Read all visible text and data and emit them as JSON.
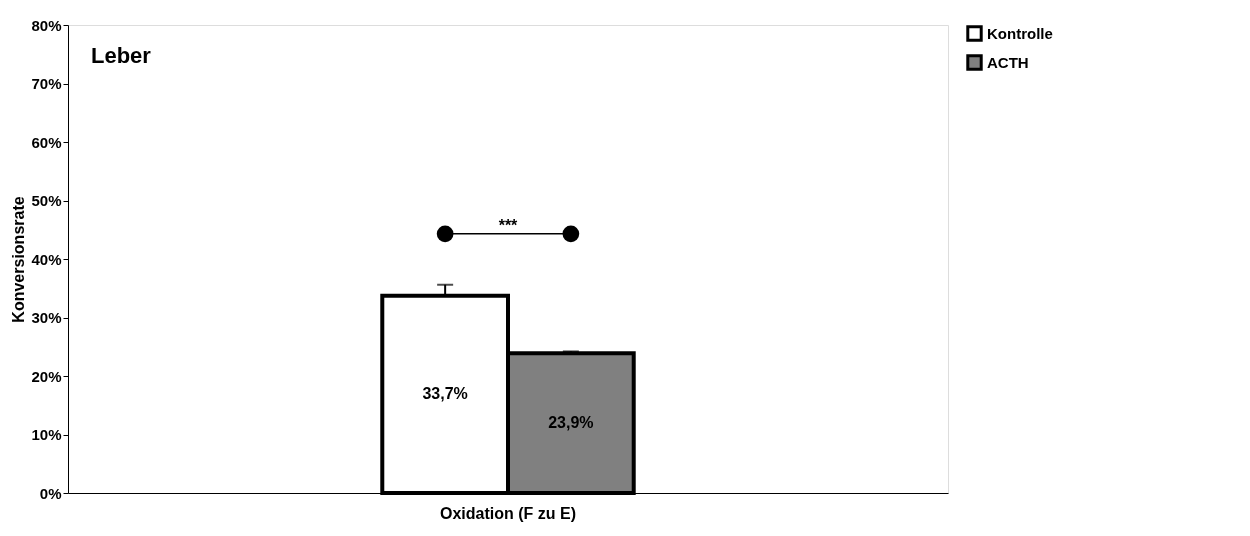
{
  "chart_data": {
    "type": "bar",
    "title": "Leber",
    "ylabel": "Konversionsrate",
    "categories": [
      "Oxidation (F zu E)"
    ],
    "series": [
      {
        "name": "Kontrolle",
        "color": "#ffffff",
        "values": [
          33.7
        ],
        "errors": [
          [
            33.7,
            35.6
          ]
        ],
        "value_labels": [
          "33,7%"
        ]
      },
      {
        "name": "ACTH",
        "color": "#808080",
        "values": [
          23.9
        ],
        "errors": [
          [
            23.9,
            24.2
          ]
        ],
        "value_labels": [
          "23,9%"
        ]
      }
    ],
    "ylim": [
      0,
      80
    ],
    "yticks": [
      {
        "value": 0,
        "label": "0%"
      },
      {
        "value": 10,
        "label": "10%"
      },
      {
        "value": 20,
        "label": "20%"
      },
      {
        "value": 30,
        "label": "30%"
      },
      {
        "value": 40,
        "label": "40%"
      },
      {
        "value": 50,
        "label": "50%"
      },
      {
        "value": 60,
        "label": "60%"
      },
      {
        "value": 70,
        "label": "70%"
      },
      {
        "value": 80,
        "label": "80%"
      }
    ],
    "annotations": [
      "***"
    ],
    "legend": "right",
    "grid": false
  }
}
